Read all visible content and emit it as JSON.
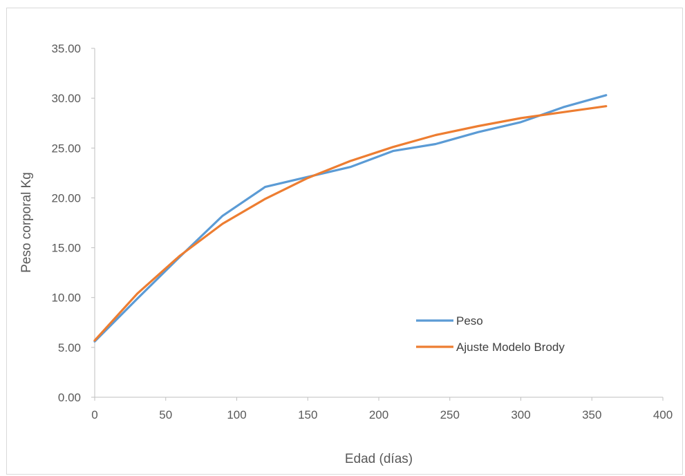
{
  "chart_data": {
    "type": "line",
    "title": "",
    "xlabel": "Edad (días)",
    "ylabel": "Peso corporal Kg",
    "xlim": [
      0,
      400
    ],
    "ylim": [
      0,
      35
    ],
    "xticks": [
      "0",
      "50",
      "100",
      "150",
      "200",
      "250",
      "300",
      "350",
      "400"
    ],
    "yticks": [
      "0.00",
      "5.00",
      "10.00",
      "15.00",
      "20.00",
      "25.00",
      "30.00",
      "35.00"
    ],
    "grid": false,
    "legend_position": "inside-right",
    "x": [
      0,
      30,
      60,
      90,
      120,
      150,
      180,
      210,
      240,
      270,
      300,
      330,
      360
    ],
    "series": [
      {
        "name": "Peso",
        "color": "#5b9bd5",
        "values": [
          5.6,
          9.9,
          14.1,
          18.2,
          21.1,
          22.1,
          23.1,
          24.7,
          25.4,
          26.6,
          27.6,
          29.1,
          30.3
        ]
      },
      {
        "name": "Ajuste Modelo Brody",
        "color": "#ed7d31",
        "values": [
          5.7,
          10.4,
          14.2,
          17.4,
          19.9,
          22.0,
          23.7,
          25.1,
          26.3,
          27.2,
          28.0,
          28.6,
          29.2
        ]
      }
    ]
  }
}
